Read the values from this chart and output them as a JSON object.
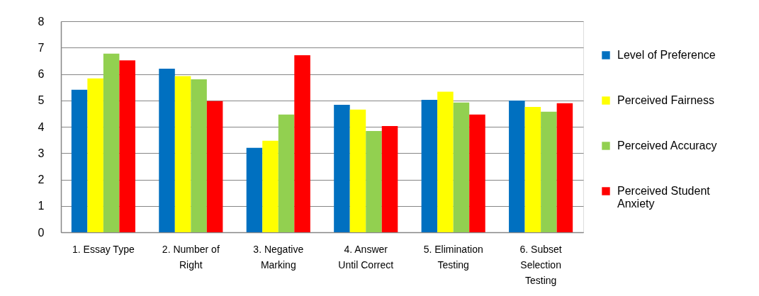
{
  "chart_data": {
    "type": "bar",
    "categories": [
      "1. Essay Type",
      "2. Number of Right",
      "3. Negative Marking",
      "4. Answer Until Correct",
      "5. Elimination Testing",
      "6. Subset Selection Testing"
    ],
    "series": [
      {
        "name": "Level of Preference",
        "color": "#0070c0",
        "values": [
          5.4,
          6.2,
          3.2,
          4.83,
          5.02,
          4.99
        ]
      },
      {
        "name": "Perceived Fairness",
        "color": "#ffff00",
        "values": [
          5.83,
          5.92,
          3.47,
          4.65,
          5.33,
          4.75
        ]
      },
      {
        "name": "Perceived Accuracy",
        "color": "#92d050",
        "values": [
          6.77,
          5.8,
          4.46,
          3.84,
          4.92,
          4.57
        ]
      },
      {
        "name": "Perceived Student Anxiety",
        "color": "#ff0000",
        "values": [
          6.52,
          4.97,
          6.71,
          4.03,
          4.46,
          4.89
        ]
      }
    ],
    "ylim": [
      0,
      8
    ],
    "yticks": [
      0,
      1,
      2,
      3,
      4,
      5,
      6,
      7,
      8
    ],
    "grid": "y",
    "legend": "right"
  }
}
